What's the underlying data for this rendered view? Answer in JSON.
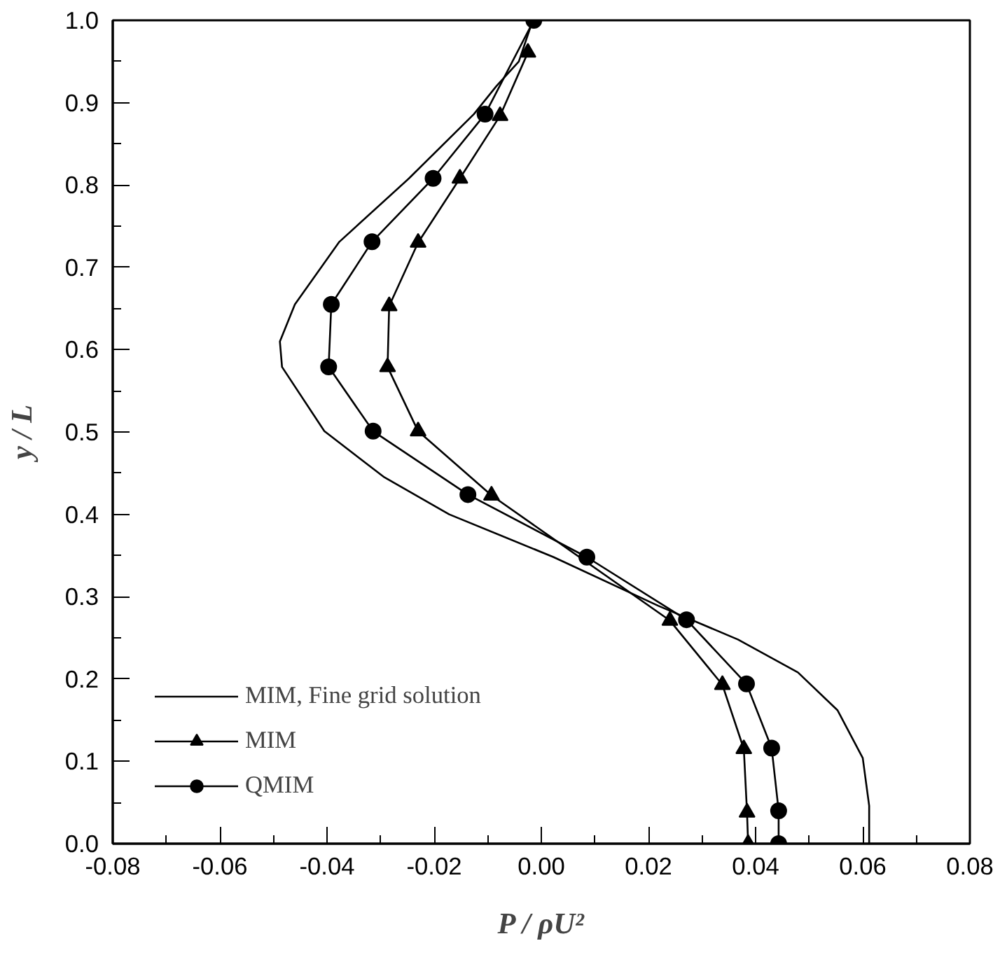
{
  "chart_data": {
    "type": "line",
    "xlabel": "P / ρU²",
    "ylabel": "y / L",
    "xlim": [
      -0.08,
      0.08
    ],
    "ylim": [
      0.0,
      1.0
    ],
    "xticks": [
      {
        "value": -0.08,
        "label": "-0.08"
      },
      {
        "value": -0.06,
        "label": "-0.06"
      },
      {
        "value": -0.04,
        "label": "-0.04"
      },
      {
        "value": -0.02,
        "label": "-0.02"
      },
      {
        "value": 0.0,
        "label": "0.00"
      },
      {
        "value": 0.02,
        "label": "0.02"
      },
      {
        "value": 0.04,
        "label": "0.04"
      },
      {
        "value": 0.06,
        "label": "0.06"
      },
      {
        "value": 0.08,
        "label": "0.08"
      }
    ],
    "yticks": [
      {
        "value": 0.0,
        "label": "0.0"
      },
      0.1,
      0.2,
      0.3,
      0.4,
      0.5,
      0.6,
      0.7,
      0.8,
      0.9,
      {
        "value": 1.0,
        "label": "1.0"
      }
    ],
    "grid": false,
    "legend": "bottom left",
    "series": [
      {
        "name": "MIM, Fine grid solution",
        "color": "#000000",
        "marker": "none",
        "x": [
          -0.0016,
          -0.0042,
          -0.0084,
          -0.0126,
          -0.0247,
          -0.0377,
          -0.046,
          -0.0488,
          -0.0484,
          -0.0405,
          -0.0293,
          -0.0172,
          0.0023,
          0.0218,
          0.0367,
          0.0479,
          0.0553,
          0.06,
          0.0612,
          0.0612
        ],
        "values": [
          1.0,
          0.95,
          0.92,
          0.886,
          0.808,
          0.731,
          0.655,
          0.61,
          0.579,
          0.501,
          0.445,
          0.4,
          0.348,
          0.289,
          0.248,
          0.208,
          0.162,
          0.104,
          0.046,
          0.0
        ]
      },
      {
        "name": "MIM",
        "color": "#000000",
        "marker": "triangle",
        "x": [
          -0.0025,
          -0.0077,
          -0.0152,
          -0.023,
          -0.0284,
          -0.0287,
          -0.023,
          -0.0093,
          0.024,
          0.0338,
          0.0378,
          0.0384,
          0.0386
        ],
        "values": [
          0.961,
          0.884,
          0.808,
          0.73,
          0.653,
          0.579,
          0.501,
          0.423,
          0.271,
          0.193,
          0.115,
          0.038,
          0.0
        ]
      },
      {
        "name": "QMIM",
        "color": "#000000",
        "marker": "circle",
        "x": [
          -0.0014,
          -0.0105,
          -0.0202,
          -0.0316,
          -0.0392,
          -0.0397,
          -0.0314,
          -0.0137,
          0.0085,
          0.0271,
          0.0383,
          0.043,
          0.0443,
          0.0443
        ],
        "values": [
          1.0,
          0.886,
          0.808,
          0.731,
          0.655,
          0.579,
          0.501,
          0.424,
          0.348,
          0.272,
          0.194,
          0.116,
          0.04,
          0.0
        ]
      }
    ]
  }
}
